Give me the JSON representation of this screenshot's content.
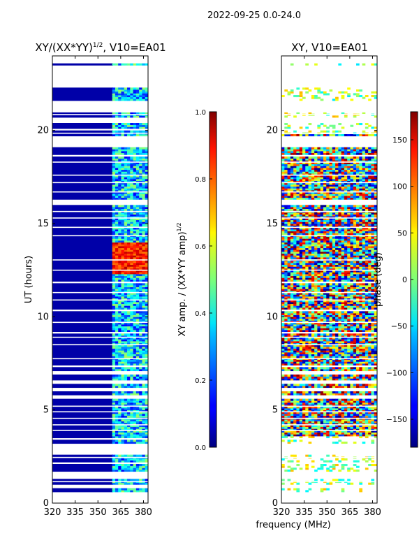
{
  "suptitle": "2022-09-25 0.0-24.0",
  "shared_xlabel": "frequency (MHz)",
  "chart_data": [
    {
      "type": "heatmap",
      "title_main": "XY/(XX*YY)",
      "title_exp": "1/2",
      "title_tail": ", V10=EA01",
      "xlabel": "frequency (MHz)",
      "ylabel": "UT (hours)",
      "xlim": [
        320,
        383
      ],
      "ylim": [
        0,
        24
      ],
      "xticks": [
        320,
        335,
        350,
        365,
        380
      ],
      "yticks": [
        0,
        5,
        10,
        15,
        20
      ],
      "colorbar": {
        "label_main": "XY amp. / (XX*YY amp)",
        "label_exp": "1/2",
        "range": [
          0.0,
          1.0
        ],
        "ticks": [
          "0.0",
          "0.2",
          "0.4",
          "0.6",
          "0.8",
          "1.0"
        ],
        "colormap": "jet"
      },
      "band_start_mhz": 360,
      "flag_start_mhz": 320,
      "description": "Low normalized amplitude (~0.05) below 360 MHz, 0.1-0.6 above 360 MHz, peak ~0.9 near 12.3-14 UT above 360 MHz"
    },
    {
      "type": "heatmap",
      "title": "XY, V10=EA01",
      "xlabel": "frequency (MHz)",
      "ylabel": "",
      "xlim": [
        320,
        383
      ],
      "ylim": [
        0,
        24
      ],
      "xticks": [
        320,
        335,
        350,
        365,
        380
      ],
      "yticks": [
        0,
        5,
        10,
        15,
        20
      ],
      "colorbar": {
        "label": "phase (deg)",
        "range": [
          -180,
          180
        ],
        "ticks": [
          "150",
          "100",
          "50",
          "0",
          "−50",
          "−100",
          "−150"
        ],
        "tick_values": [
          150,
          100,
          50,
          0,
          -50,
          -100,
          -150
        ],
        "colormap": "jet"
      },
      "description": "XY phase in degrees spanning -180 to 180, noisy across full band"
    }
  ],
  "flagged_rows": [
    [
      0,
      0.6
    ],
    [
      0.8,
      1.0
    ],
    [
      1.3,
      1.7
    ],
    [
      2.1,
      2.25
    ],
    [
      2.6,
      3.2
    ],
    [
      3.4,
      3.5
    ],
    [
      5.6,
      5.8
    ],
    [
      6.0,
      6.2
    ],
    [
      6.45,
      6.6
    ],
    [
      6.9,
      7.1
    ],
    [
      7.3,
      7.45
    ],
    [
      9.15,
      9.25
    ],
    [
      10.3,
      10.45
    ],
    [
      11.8,
      11.95
    ],
    [
      16.05,
      16.3
    ],
    [
      18.6,
      18.75
    ],
    [
      19.1,
      19.75
    ],
    [
      20.0,
      20.15
    ],
    [
      20.45,
      20.75
    ],
    [
      21.05,
      21.6
    ],
    [
      22.3,
      23.5
    ],
    [
      23.65,
      24
    ]
  ],
  "thin_gaps": [
    4.2,
    4.55,
    4.9,
    7.75,
    8.5,
    8.9,
    9.7,
    10.9,
    11.3,
    12.5,
    13.05,
    14.35,
    14.8,
    15.3,
    15.65,
    16.7,
    17.2,
    17.6,
    18.3,
    19.85,
    20.85,
    21.0,
    1.15,
    2.45,
    3.9,
    5.2
  ]
}
